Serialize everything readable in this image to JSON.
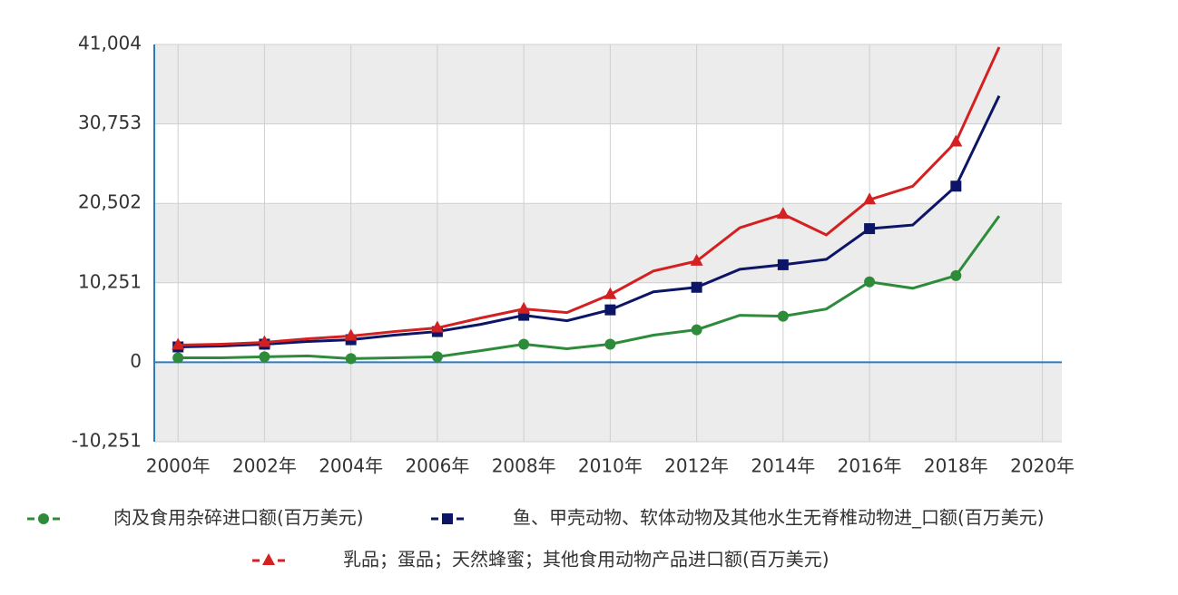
{
  "chart_data": {
    "type": "line",
    "x": [
      2000,
      2001,
      2002,
      2003,
      2004,
      2005,
      2006,
      2007,
      2008,
      2009,
      2010,
      2011,
      2012,
      2013,
      2014,
      2015,
      2016,
      2017,
      2018,
      2019
    ],
    "series": [
      {
        "name": "肉及食用杂碎进口额(百万美元)",
        "color": "#2e8b3a",
        "marker": "circle",
        "values": [
          580,
          580,
          700,
          815,
          470,
          580,
          700,
          1500,
          2330,
          1750,
          2330,
          3500,
          4190,
          6060,
          5940,
          6870,
          10370,
          9550,
          11180,
          18870
        ]
      },
      {
        "name": "鱼、甲壳动物、软体动物及其他水生无脊椎动物进_口额(百万美元)",
        "color": "#0d1566",
        "marker": "square",
        "values": [
          1980,
          2100,
          2330,
          2680,
          2910,
          3500,
          3960,
          4890,
          6060,
          5360,
          6760,
          9090,
          9670,
          12000,
          12580,
          13280,
          17240,
          17710,
          22720,
          34370
        ]
      },
      {
        "name": "乳品；蛋品；天然蜂蜜；其他食用动物产品进口额(百万美元)",
        "color": "#d42020",
        "marker": "triangle",
        "values": [
          2210,
          2330,
          2560,
          3030,
          3380,
          3960,
          4430,
          5710,
          6870,
          6410,
          8740,
          11770,
          13050,
          17360,
          19110,
          16430,
          20970,
          22720,
          28430,
          40660
        ]
      }
    ],
    "xlim": [
      1999.45,
      2020.45
    ],
    "xticks": [
      {
        "value": 2000,
        "label": "2000年"
      },
      {
        "value": 2002,
        "label": "2002年"
      },
      {
        "value": 2004,
        "label": "2004年"
      },
      {
        "value": 2006,
        "label": "2006年"
      },
      {
        "value": 2008,
        "label": "2008年"
      },
      {
        "value": 2010,
        "label": "2010年"
      },
      {
        "value": 2012,
        "label": "2012年"
      },
      {
        "value": 2014,
        "label": "2014年"
      },
      {
        "value": 2016,
        "label": "2016年"
      },
      {
        "value": 2018,
        "label": "2018年"
      },
      {
        "value": 2020,
        "label": "2020年"
      }
    ],
    "ylim": [
      -10251,
      41004
    ],
    "yticks": [
      {
        "value": -10251,
        "label": "-10,251"
      },
      0,
      {
        "value": 10251,
        "label": "10,251"
      },
      {
        "value": 20502,
        "label": "20,502"
      },
      {
        "value": 30753,
        "label": "30,753"
      },
      {
        "value": 41004,
        "label": "41,004"
      }
    ],
    "grid": true
  }
}
